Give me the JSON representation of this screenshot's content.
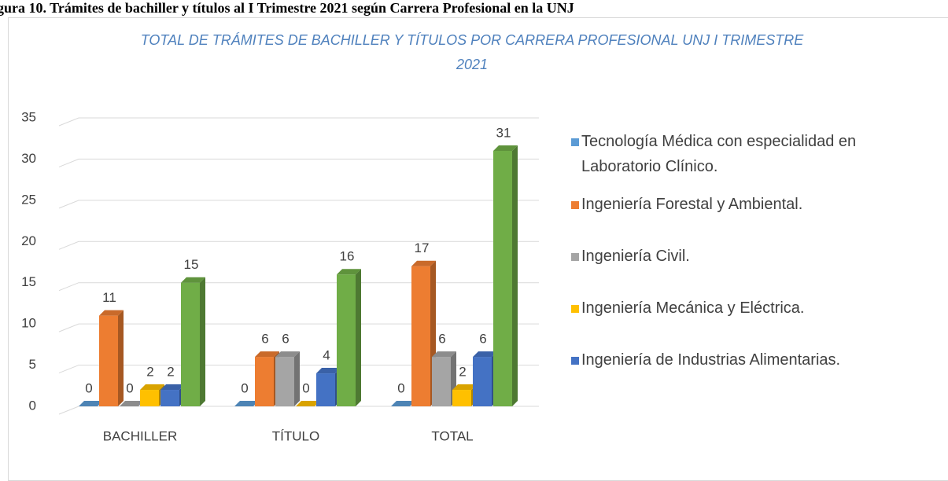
{
  "caption": "gura 10. Trámites de bachiller y títulos al I Trimestre 2021 según Carrera Profesional en la UNJ",
  "chart_data": {
    "type": "bar3d",
    "title": "TOTAL DE TRÁMITES DE BACHILLER Y TÍTULOS POR CARRERA PROFESIONAL UNJ I TRIMESTRE 2021",
    "categories": [
      "BACHILLER",
      "TÍTULO",
      "TOTAL"
    ],
    "series": [
      {
        "name": "Tecnología Médica con especialidad en Laboratorio Clínico.",
        "color": "#5b9bd5",
        "values": [
          0,
          0,
          0
        ]
      },
      {
        "name": "Ingeniería Forestal y Ambiental.",
        "color": "#ed7d31",
        "values": [
          11,
          6,
          17
        ]
      },
      {
        "name": "Ingeniería Civil.",
        "color": "#a5a5a5",
        "values": [
          0,
          6,
          6
        ]
      },
      {
        "name": "Ingeniería Mecánica y Eléctrica.",
        "color": "#ffc000",
        "values": [
          2,
          0,
          2
        ]
      },
      {
        "name": "Ingeniería de Industrias Alimentarias.",
        "color": "#4472c4",
        "values": [
          2,
          4,
          6
        ]
      },
      {
        "color": "#70ad47",
        "values": [
          15,
          16,
          31
        ]
      }
    ],
    "ylim": [
      0,
      35
    ],
    "yticks": [
      0,
      5,
      10,
      15,
      20,
      25,
      30,
      35
    ],
    "grid": true,
    "legend": "right"
  }
}
